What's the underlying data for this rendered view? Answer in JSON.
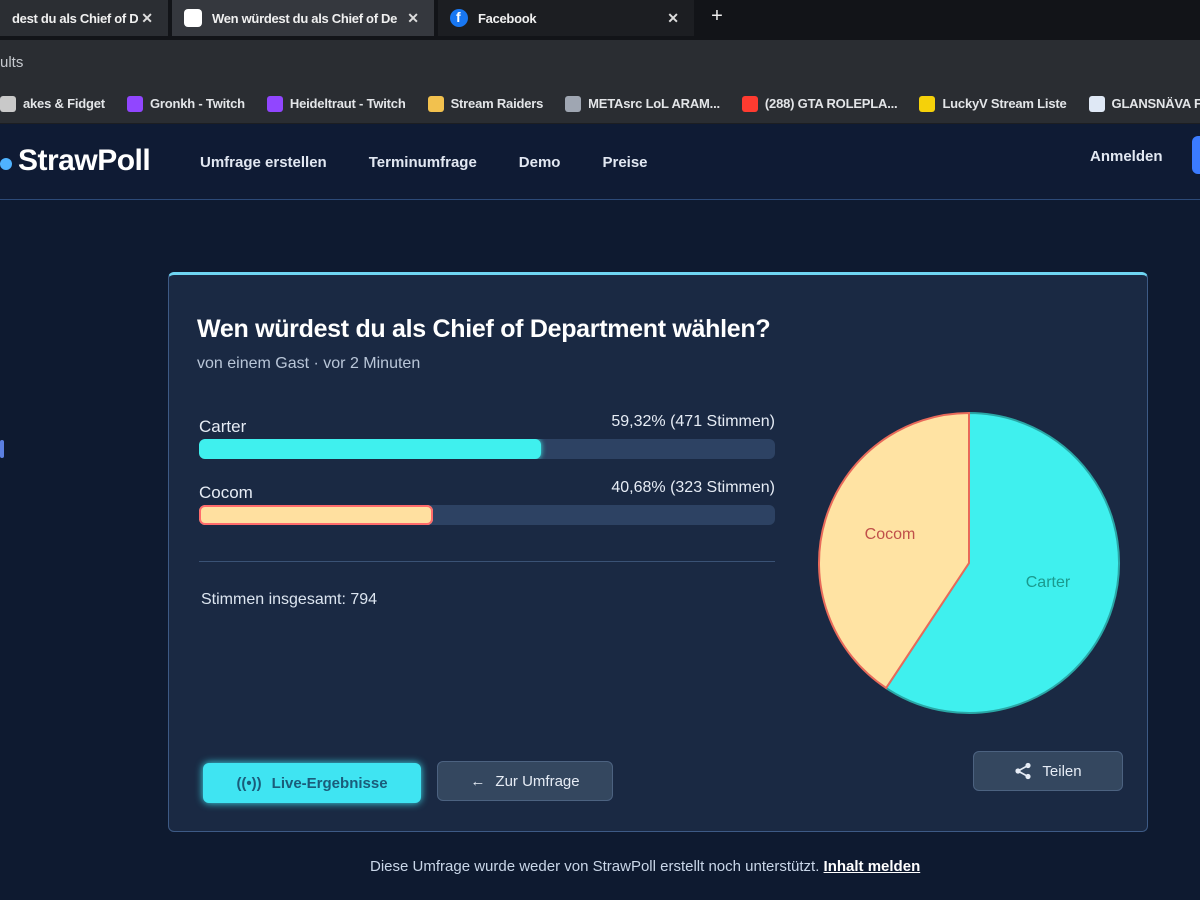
{
  "browser": {
    "tabs": [
      {
        "title": "dest du als Chief of De",
        "active": false
      },
      {
        "title": "Wen würdest du als Chief of De",
        "active": true
      },
      {
        "title": "Facebook",
        "active": false
      }
    ],
    "new_tab_symbol": "+",
    "close_symbol": "✕",
    "address_text": "ults",
    "bookmarks": [
      {
        "label": "akes & Fidget",
        "icon": "bookmark-icon",
        "color": "#c9c9c9"
      },
      {
        "label": "Gronkh - Twitch",
        "icon": "twitch-icon",
        "color": "#9146ff"
      },
      {
        "label": "Heideltraut - Twitch",
        "icon": "twitch-icon",
        "color": "#9146ff"
      },
      {
        "label": "Stream Raiders",
        "icon": "sword-icon",
        "color": "#f2c14e"
      },
      {
        "label": "METAsrc LoL ARAM...",
        "icon": "metasrc-icon",
        "color": "#9fa6b2"
      },
      {
        "label": "(288) GTA ROLEPLA...",
        "icon": "youtube-icon",
        "color": "#ff3b30"
      },
      {
        "label": "LuckyV Stream Liste",
        "icon": "luckyv-icon",
        "color": "#f5d10a"
      },
      {
        "label": "GLANSNÄVA Futter...",
        "icon": "ikea-icon",
        "color": "#dfe8f5"
      }
    ]
  },
  "site": {
    "logo_text": "StrawPoll",
    "nav": [
      "Umfrage erstellen",
      "Terminumfrage",
      "Demo",
      "Preise"
    ],
    "signin": "Anmelden"
  },
  "poll": {
    "question": "Wen würdest du als Chief of Department wählen?",
    "meta": "von einem Gast · vor 2 Minuten",
    "options": [
      {
        "label": "Carter",
        "result": "59,32% (471 Stimmen)",
        "share": 0.5932,
        "color": "#3ff0ee"
      },
      {
        "label": "Cocom",
        "result": "40,68% (323 Stimmen)",
        "share": 0.4068,
        "color": "#ffe3a3"
      }
    ],
    "total": "Stimmen insgesamt: 794",
    "buttons": {
      "live": "Live-Ergebnisse",
      "back": "Zur Umfrage",
      "share": "Teilen"
    }
  },
  "footer": {
    "text": "Diese Umfrage wurde weder von StrawPoll erstellt noch unterstützt.",
    "report": "Inhalt melden"
  },
  "chart_data": {
    "type": "pie",
    "categories": [
      "Carter",
      "Cocom"
    ],
    "values": [
      471,
      323
    ],
    "colors": [
      "#3ff0ee",
      "#ffe3a3"
    ]
  }
}
